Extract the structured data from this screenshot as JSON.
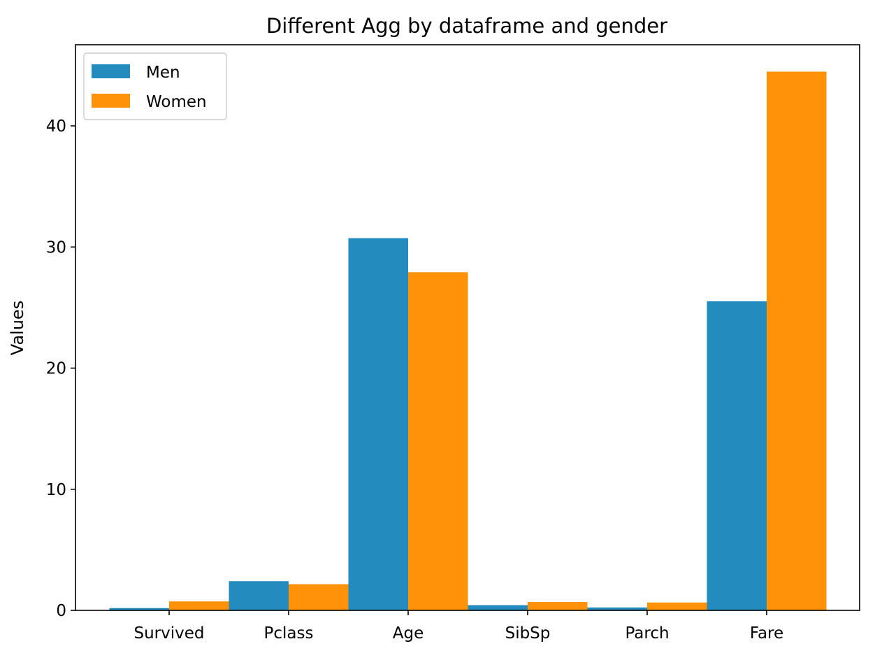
{
  "chart_data": {
    "type": "bar",
    "title": "Different Agg by dataframe and gender",
    "xlabel": "",
    "ylabel": "Values",
    "categories": [
      "Survived",
      "Pclass",
      "Age",
      "SibSp",
      "Parch",
      "Fare"
    ],
    "series": [
      {
        "name": "Men",
        "color": "#238bbe",
        "values": [
          0.19,
          2.41,
          30.73,
          0.43,
          0.24,
          25.52
        ]
      },
      {
        "name": "Women",
        "color": "#ff9208",
        "values": [
          0.74,
          2.16,
          27.92,
          0.69,
          0.65,
          44.48
        ]
      }
    ],
    "yticks": [
      0,
      10,
      20,
      30,
      40
    ],
    "ylim": [
      0,
      46.7
    ],
    "grid": false,
    "legend": "top-left"
  }
}
